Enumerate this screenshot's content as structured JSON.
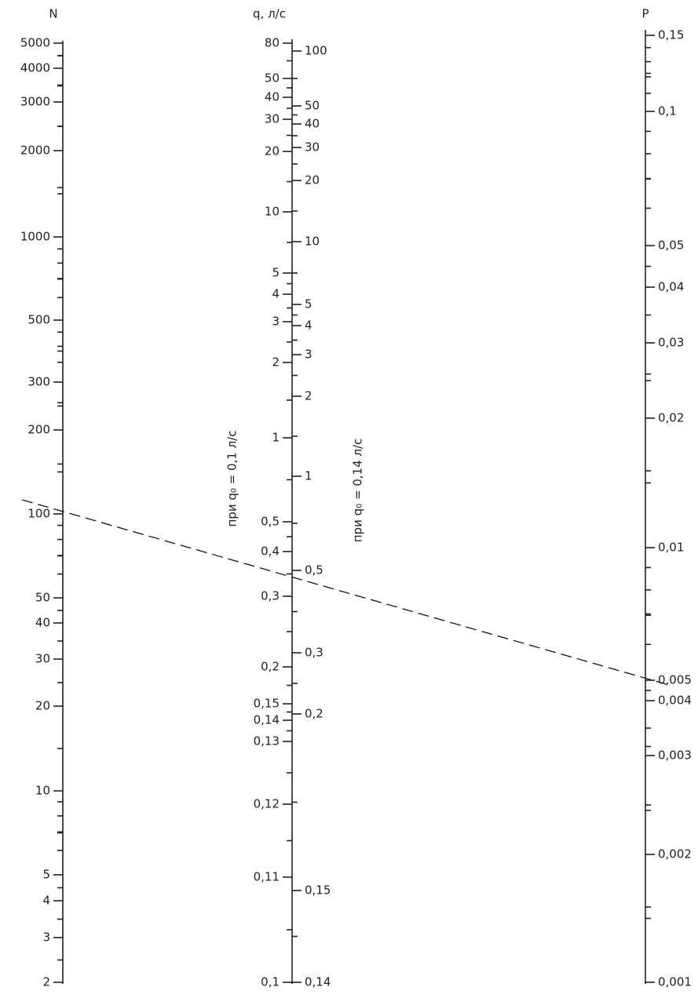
{
  "axes": [
    {
      "title": "N",
      "ticks": [
        "5000",
        "4000",
        "3000",
        "2000",
        "1000",
        "500",
        "300",
        "200",
        "100",
        "50",
        "40",
        "30",
        "20",
        "10",
        "5",
        "4",
        "3",
        "2"
      ]
    },
    {
      "title": "q, л/с",
      "ticks": [
        "80",
        "50",
        "40",
        "30",
        "20",
        "10",
        "5",
        "4",
        "3",
        "2",
        "1",
        "0,5",
        "0,4",
        "0,3",
        "0,2",
        "0,15",
        "0,14",
        "0,13",
        "0,12",
        "0,11",
        "0,1"
      ],
      "ticks_right": [
        "100",
        "50",
        "40",
        "30",
        "20",
        "10",
        "5",
        "4",
        "3",
        "2",
        "1",
        "0,5",
        "0,3",
        "0,2",
        "0,15",
        "0,14"
      ]
    },
    {
      "title": "P",
      "ticks": [
        "0,15",
        "0,1",
        "0,05",
        "0,04",
        "0,03",
        "0,02",
        "0,01",
        "0,005",
        "0,004",
        "0,003",
        "0,002",
        "0,001"
      ]
    }
  ],
  "annotations": [
    "при q₀ = 0,1 л/с",
    "при q₀ = 0,14 л/с"
  ]
}
